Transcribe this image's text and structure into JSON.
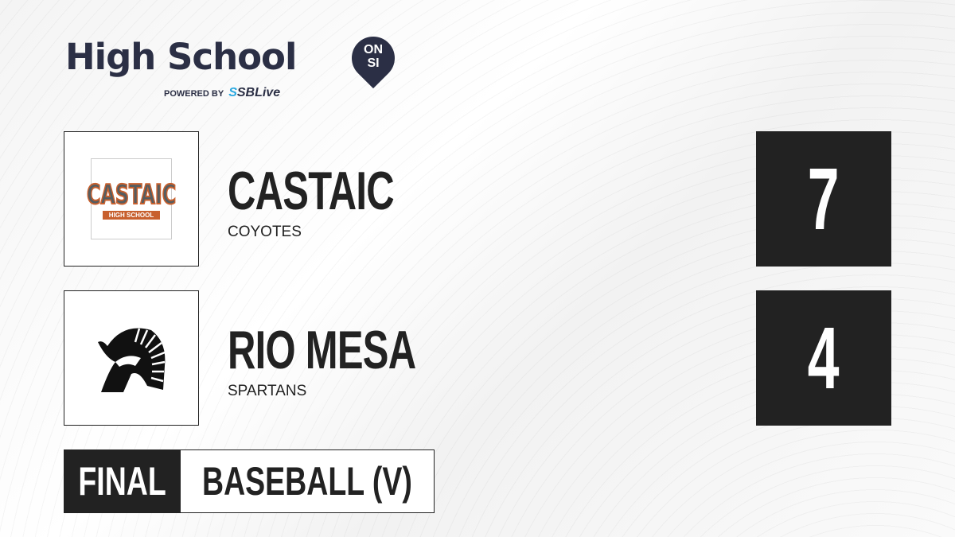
{
  "brand": {
    "title": "High School",
    "badge_top": "ON",
    "badge_bottom": "SI",
    "powered_by": "POWERED BY",
    "partner_prefix": "S",
    "partner": "SBLive",
    "accent": "#29a8e0",
    "navy": "#2b2f45"
  },
  "teams": [
    {
      "name": "CASTAIC",
      "mascot": "COYOTES",
      "score": "7",
      "logo_text": "CASTAIC",
      "logo_subtext": "HIGH SCHOOL",
      "logo_colors": [
        "#c8602e",
        "#555d60"
      ]
    },
    {
      "name": "RIO MESA",
      "mascot": "SPARTANS",
      "score": "4",
      "logo_icon": "spartan-helmet-icon"
    }
  ],
  "game": {
    "status": "FINAL",
    "sport": "BASEBALL (V)"
  }
}
